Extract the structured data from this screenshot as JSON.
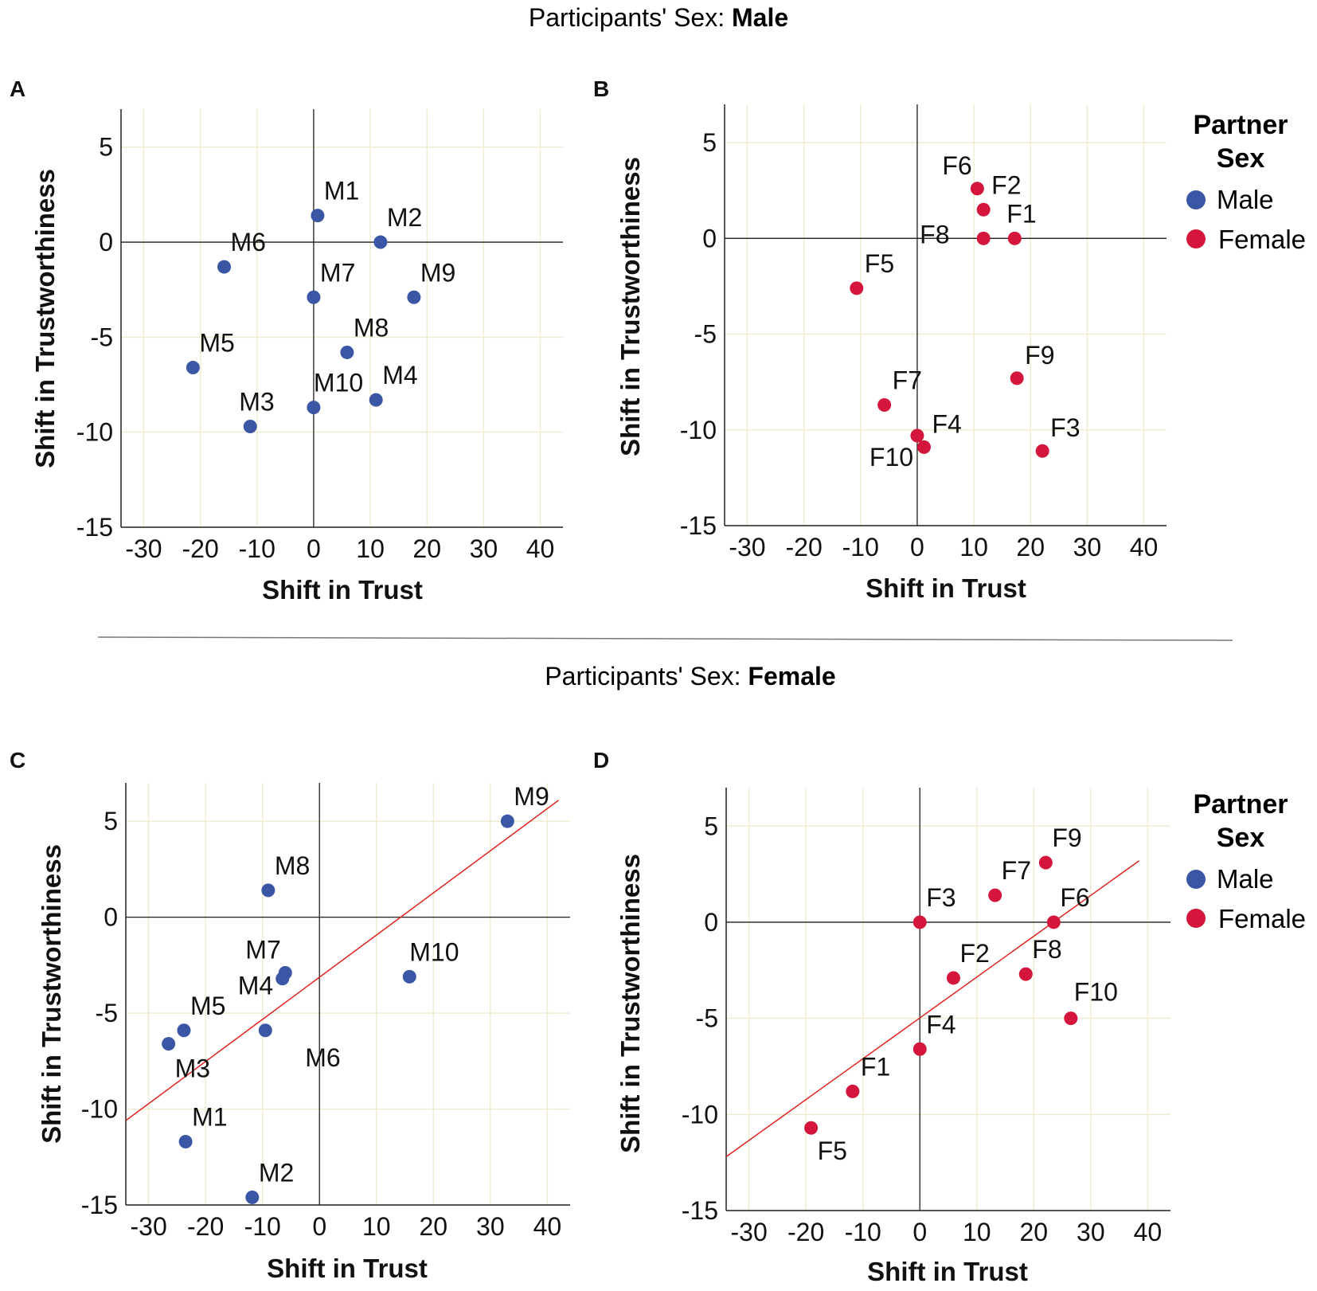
{
  "sections": [
    {
      "title_prefix": "Participants' Sex: ",
      "title_bold": "Male"
    },
    {
      "title_prefix": "Participants' Sex: ",
      "title_bold": "Female"
    }
  ],
  "legend": {
    "title_line1": "Partner",
    "title_line2": "Sex",
    "items": [
      {
        "label": "Male",
        "color": "#3a56a5"
      },
      {
        "label": "Female",
        "color": "#d4163c"
      }
    ]
  },
  "colors": {
    "male": "#3a56a5",
    "female": "#d4163c",
    "fit_line": "#e0231e",
    "grid": "#f0ecd2",
    "axis": "#222222"
  },
  "chart_data": [
    {
      "type": "scatter",
      "panel_label": "A",
      "xlabel": "Shift in Trust",
      "ylabel": "Shift in Trustworthiness",
      "xlim": [
        -34,
        44
      ],
      "ylim": [
        -15,
        7
      ],
      "xticks": [
        -30,
        -20,
        -10,
        0,
        10,
        20,
        30,
        40
      ],
      "yticks": [
        5,
        0,
        -5,
        -10,
        -15
      ],
      "series_color": "male",
      "points": [
        {
          "label": "M1",
          "x": 0.7,
          "y": 1.4
        },
        {
          "label": "M2",
          "x": 11.8,
          "y": 0.0
        },
        {
          "label": "M3",
          "x": -11.2,
          "y": -9.7
        },
        {
          "label": "M4",
          "x": 11.0,
          "y": -8.3
        },
        {
          "label": "M5",
          "x": -21.3,
          "y": -6.6
        },
        {
          "label": "M6",
          "x": -15.8,
          "y": -1.3
        },
        {
          "label": "M7",
          "x": 0.0,
          "y": -2.9
        },
        {
          "label": "M8",
          "x": 5.9,
          "y": -5.8
        },
        {
          "label": "M9",
          "x": 17.7,
          "y": -2.9
        },
        {
          "label": "M10",
          "x": 0.0,
          "y": -8.7
        }
      ],
      "fit_line": null
    },
    {
      "type": "scatter",
      "panel_label": "B",
      "xlabel": "Shift in Trust",
      "ylabel": "Shift in Trustworthiness",
      "xlim": [
        -34,
        44
      ],
      "ylim": [
        -15,
        7
      ],
      "xticks": [
        -30,
        -20,
        -10,
        0,
        10,
        20,
        30,
        40
      ],
      "yticks": [
        5,
        0,
        -5,
        -10,
        -15
      ],
      "series_color": "female",
      "show_legend": true,
      "points": [
        {
          "label": "F1",
          "x": 17.2,
          "y": 0.0
        },
        {
          "label": "F2",
          "x": 11.7,
          "y": 1.5
        },
        {
          "label": "F3",
          "x": 22.1,
          "y": -11.1
        },
        {
          "label": "F4",
          "x": 1.2,
          "y": -10.9
        },
        {
          "label": "F5",
          "x": -10.7,
          "y": -2.6
        },
        {
          "label": "F6",
          "x": 10.6,
          "y": 2.6
        },
        {
          "label": "F7",
          "x": -5.8,
          "y": -8.7
        },
        {
          "label": "F8",
          "x": 11.7,
          "y": 0.0
        },
        {
          "label": "F9",
          "x": 17.6,
          "y": -7.3
        },
        {
          "label": "F10",
          "x": 0.0,
          "y": -10.3
        }
      ],
      "fit_line": null
    },
    {
      "type": "scatter",
      "panel_label": "C",
      "xlabel": "Shift in Trust",
      "ylabel": "Shift in Trustworthiness",
      "xlim": [
        -34,
        44
      ],
      "ylim": [
        -15,
        7
      ],
      "xticks": [
        -30,
        -20,
        -10,
        0,
        10,
        20,
        30,
        40
      ],
      "yticks": [
        5,
        0,
        -5,
        -10,
        -15
      ],
      "series_color": "male",
      "points": [
        {
          "label": "M1",
          "x": -23.5,
          "y": -11.7
        },
        {
          "label": "M2",
          "x": -11.8,
          "y": -14.6
        },
        {
          "label": "M3",
          "x": -26.5,
          "y": -6.6
        },
        {
          "label": "M4",
          "x": -6.5,
          "y": -3.2
        },
        {
          "label": "M5",
          "x": -23.8,
          "y": -5.9
        },
        {
          "label": "M6",
          "x": -9.5,
          "y": -5.9
        },
        {
          "label": "M7",
          "x": -6.0,
          "y": -2.9
        },
        {
          "label": "M8",
          "x": -9.0,
          "y": 1.4
        },
        {
          "label": "M9",
          "x": 33.0,
          "y": 5.0
        },
        {
          "label": "M10",
          "x": 15.8,
          "y": -3.1
        }
      ],
      "fit_line": {
        "x": [
          -34,
          42
        ],
        "y": [
          -10.6,
          6.1
        ]
      }
    },
    {
      "type": "scatter",
      "panel_label": "D",
      "xlabel": "Shift in Trust",
      "ylabel": "Shift in Trustworthiness",
      "xlim": [
        -34,
        44
      ],
      "ylim": [
        -15,
        7
      ],
      "xticks": [
        -30,
        -20,
        -10,
        0,
        10,
        20,
        30,
        40
      ],
      "yticks": [
        5,
        0,
        -5,
        -10,
        -15
      ],
      "series_color": "female",
      "show_legend": true,
      "points": [
        {
          "label": "F1",
          "x": -11.8,
          "y": -8.8
        },
        {
          "label": "F2",
          "x": 5.9,
          "y": -2.9
        },
        {
          "label": "F3",
          "x": 0.0,
          "y": 0.0
        },
        {
          "label": "F4",
          "x": 0.0,
          "y": -6.6
        },
        {
          "label": "F5",
          "x": -19.1,
          "y": -10.7
        },
        {
          "label": "F6",
          "x": 23.5,
          "y": 0.0
        },
        {
          "label": "F7",
          "x": 13.2,
          "y": 1.4
        },
        {
          "label": "F8",
          "x": 18.6,
          "y": -2.7
        },
        {
          "label": "F9",
          "x": 22.1,
          "y": 3.1
        },
        {
          "label": "F10",
          "x": 26.5,
          "y": -5.0
        }
      ],
      "fit_line": {
        "x": [
          -34,
          38.5
        ],
        "y": [
          -12.2,
          3.2
        ]
      }
    }
  ]
}
